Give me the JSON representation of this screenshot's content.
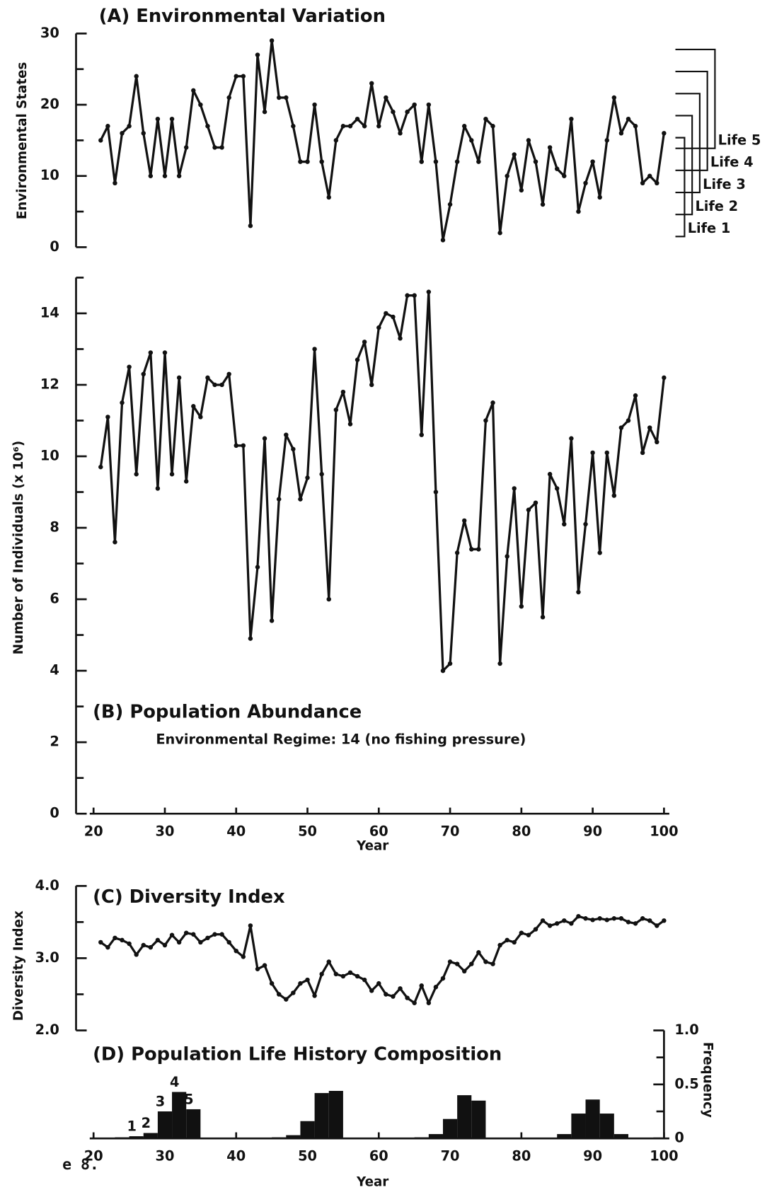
{
  "caption": "e 8.",
  "chart_data": [
    {
      "type": "line",
      "title": "(A) Environmental Variation",
      "y_label": "Environmental States",
      "color": "#111111",
      "x": [
        21,
        22,
        23,
        24,
        25,
        26,
        27,
        28,
        29,
        30,
        31,
        32,
        33,
        34,
        35,
        36,
        37,
        38,
        39,
        40,
        41,
        42,
        43,
        44,
        45,
        46,
        47,
        48,
        49,
        50,
        51,
        52,
        53,
        54,
        55,
        56,
        57,
        58,
        59,
        60,
        61,
        62,
        63,
        64,
        65,
        66,
        67,
        68,
        69,
        70,
        71,
        72,
        73,
        74,
        75,
        76,
        77,
        78,
        79,
        80,
        81,
        82,
        83,
        84,
        85,
        86,
        87,
        88,
        89,
        90,
        91,
        92,
        93,
        94,
        95,
        96,
        97,
        98,
        99,
        100
      ],
      "values": [
        15,
        17,
        9,
        16,
        17,
        24,
        16,
        10,
        18,
        10,
        18,
        10,
        14,
        22,
        20,
        17,
        14,
        14,
        21,
        24,
        24,
        3,
        27,
        19,
        29,
        21,
        21,
        17,
        12,
        12,
        20,
        12,
        7,
        15,
        17,
        17,
        18,
        17,
        23,
        17,
        21,
        19,
        16,
        19,
        20,
        12,
        20,
        12,
        1,
        6,
        12,
        17,
        15,
        12,
        18,
        17,
        2,
        10,
        13,
        8,
        15,
        12,
        6,
        14,
        11,
        10,
        18,
        5,
        9,
        12,
        7,
        15,
        21,
        16,
        18,
        17,
        9,
        10,
        9,
        16
      ],
      "xlim": [
        20,
        100
      ],
      "ylim": [
        0,
        30
      ],
      "yticks": [
        0,
        10,
        20,
        30
      ],
      "minor_yticks": [
        5,
        15,
        25
      ],
      "annotations": [
        "Life 5",
        "Life 4",
        "Life 3",
        "Life 2",
        "Life 1"
      ]
    },
    {
      "type": "line",
      "title": "(B) Population Abundance",
      "subtitle": "Environmental Regime: 14  (no fishing pressure)",
      "x_label": "Year",
      "y_label": "Number of Individuals (x 10⁶)",
      "color": "#111111",
      "x": [
        21,
        22,
        23,
        24,
        25,
        26,
        27,
        28,
        29,
        30,
        31,
        32,
        33,
        34,
        35,
        36,
        37,
        38,
        39,
        40,
        41,
        42,
        43,
        44,
        45,
        46,
        47,
        48,
        49,
        50,
        51,
        52,
        53,
        54,
        55,
        56,
        57,
        58,
        59,
        60,
        61,
        62,
        63,
        64,
        65,
        66,
        67,
        68,
        69,
        70,
        71,
        72,
        73,
        74,
        75,
        76,
        77,
        78,
        79,
        80,
        81,
        82,
        83,
        84,
        85,
        86,
        87,
        88,
        89,
        90,
        91,
        92,
        93,
        94,
        95,
        96,
        97,
        98,
        99,
        100
      ],
      "values": [
        9.7,
        11.1,
        7.6,
        11.5,
        12.5,
        9.5,
        12.3,
        12.9,
        9.1,
        12.9,
        9.5,
        12.2,
        9.3,
        11.4,
        11.1,
        12.2,
        12.0,
        12.0,
        12.3,
        10.3,
        10.3,
        4.9,
        6.9,
        10.5,
        5.4,
        8.8,
        10.6,
        10.2,
        8.8,
        9.4,
        13.0,
        9.5,
        6.0,
        11.3,
        11.8,
        10.9,
        12.7,
        13.2,
        12.0,
        13.6,
        14.0,
        13.9,
        13.3,
        14.5,
        14.5,
        10.6,
        14.6,
        9.0,
        4.0,
        4.2,
        7.3,
        8.2,
        7.4,
        7.4,
        11.0,
        11.5,
        4.2,
        7.2,
        9.1,
        5.8,
        8.5,
        8.7,
        5.5,
        9.5,
        9.1,
        8.1,
        10.5,
        6.2,
        8.1,
        10.1,
        7.3,
        10.1,
        8.9,
        10.8,
        11.0,
        11.7,
        10.1,
        10.8,
        10.4,
        12.2
      ],
      "xlim": [
        20,
        100
      ],
      "xticks": [
        20,
        30,
        40,
        50,
        60,
        70,
        80,
        90,
        100
      ],
      "ylim": [
        0,
        15
      ],
      "yticks": [
        0,
        2,
        4,
        6,
        8,
        10,
        12,
        14
      ],
      "minor_yticks": [
        1,
        3,
        5,
        7,
        9,
        11,
        13,
        15
      ]
    },
    {
      "type": "line",
      "title": "(C) Diversity Index",
      "y_label": "Diversity Index",
      "color": "#111111",
      "x": [
        21,
        22,
        23,
        24,
        25,
        26,
        27,
        28,
        29,
        30,
        31,
        32,
        33,
        34,
        35,
        36,
        37,
        38,
        39,
        40,
        41,
        42,
        43,
        44,
        45,
        46,
        47,
        48,
        49,
        50,
        51,
        52,
        53,
        54,
        55,
        56,
        57,
        58,
        59,
        60,
        61,
        62,
        63,
        64,
        65,
        66,
        67,
        68,
        69,
        70,
        71,
        72,
        73,
        74,
        75,
        76,
        77,
        78,
        79,
        80,
        81,
        82,
        83,
        84,
        85,
        86,
        87,
        88,
        89,
        90,
        91,
        92,
        93,
        94,
        95,
        96,
        97,
        98,
        99,
        100
      ],
      "values": [
        3.22,
        3.15,
        3.28,
        3.25,
        3.2,
        3.05,
        3.18,
        3.15,
        3.25,
        3.18,
        3.32,
        3.22,
        3.35,
        3.33,
        3.22,
        3.28,
        3.33,
        3.33,
        3.22,
        3.1,
        3.02,
        3.45,
        2.85,
        2.9,
        2.65,
        2.5,
        2.43,
        2.52,
        2.65,
        2.7,
        2.48,
        2.78,
        2.95,
        2.78,
        2.75,
        2.8,
        2.75,
        2.7,
        2.55,
        2.65,
        2.5,
        2.47,
        2.58,
        2.45,
        2.38,
        2.62,
        2.38,
        2.6,
        2.72,
        2.95,
        2.92,
        2.82,
        2.92,
        3.08,
        2.95,
        2.92,
        3.18,
        3.25,
        3.22,
        3.35,
        3.32,
        3.4,
        3.52,
        3.45,
        3.48,
        3.52,
        3.48,
        3.58,
        3.55,
        3.53,
        3.55,
        3.53,
        3.55,
        3.55,
        3.5,
        3.48,
        3.55,
        3.52,
        3.45,
        3.52
      ],
      "xlim": [
        20,
        100
      ],
      "ylim": [
        2,
        4
      ],
      "yticks": [
        {
          "value": 2,
          "label": "2.0"
        },
        {
          "value": 3,
          "label": "3.0"
        },
        {
          "value": 4,
          "label": "4.0"
        }
      ],
      "minor_yticks": [
        2.5,
        3.5
      ]
    },
    {
      "type": "histogram",
      "title": "(D) Population Life History Composition",
      "x_label": "Year",
      "y_label": "Frequency",
      "y_axis_position": "right",
      "color": "#111111",
      "bins": [
        21,
        23,
        25,
        27,
        29,
        31,
        33,
        35,
        37,
        39,
        41,
        43,
        45,
        47,
        49,
        51,
        53,
        55,
        57,
        59,
        61,
        63,
        65,
        67,
        69,
        71,
        73,
        75,
        77,
        79,
        81,
        83,
        85,
        87,
        89,
        91,
        93,
        95,
        97,
        99,
        101
      ],
      "values": [
        0,
        0.01,
        0.02,
        0.05,
        0.25,
        0.43,
        0.27,
        0,
        0,
        0,
        0,
        0,
        0.01,
        0.03,
        0.16,
        0.42,
        0.44,
        0,
        0,
        0,
        0,
        0,
        0.01,
        0.04,
        0.18,
        0.4,
        0.35,
        0,
        0,
        0,
        0,
        0,
        0.04,
        0.23,
        0.36,
        0.23,
        0.04,
        0,
        0,
        0
      ],
      "annotations": [
        "1",
        "2",
        "3",
        "4",
        "5"
      ],
      "xlim": [
        20,
        100
      ],
      "xticks": [
        20,
        30,
        40,
        50,
        60,
        70,
        80,
        90,
        100
      ],
      "ylim": [
        0,
        1
      ],
      "yticks": [
        0,
        0.5,
        {
          "value": 1,
          "label": "1.0"
        }
      ],
      "minor_yticks": [
        0.25,
        0.75
      ]
    }
  ]
}
